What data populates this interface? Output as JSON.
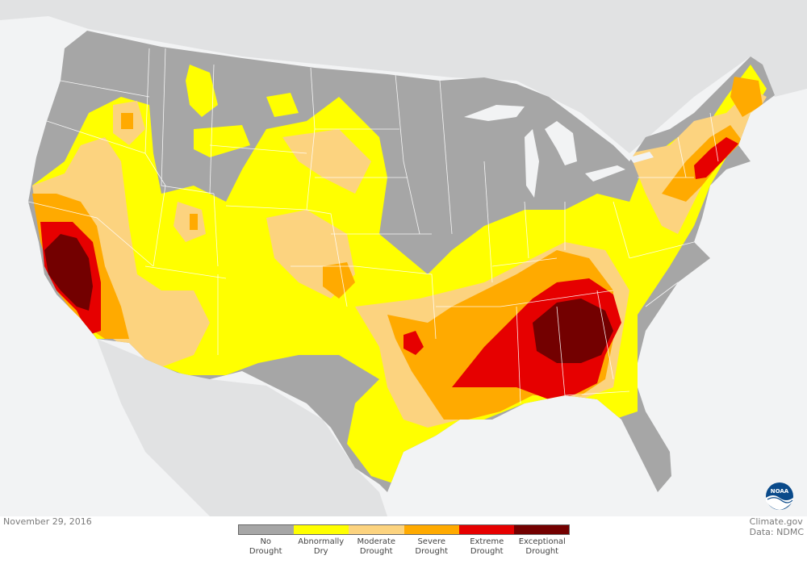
{
  "date": "November 29, 2016",
  "credit": {
    "site": "Climate.gov",
    "data_source": "Data: NDMC"
  },
  "logo": {
    "name": "noaa-logo",
    "text": "NOAA"
  },
  "legend": [
    {
      "label": "No\nDrought",
      "color": "#a6a6a6"
    },
    {
      "label": "Abnormally\nDry",
      "color": "#ffff00"
    },
    {
      "label": "Moderate\nDrought",
      "color": "#fcd37f"
    },
    {
      "label": "Severe\nDrought",
      "color": "#ffaa00"
    },
    {
      "label": "Extreme\nDrought",
      "color": "#e60000"
    },
    {
      "label": "Exceptional\nDrought",
      "color": "#730000"
    }
  ],
  "colors": {
    "background": "#f2f3f4",
    "land_outside": "#e1e2e3",
    "state_border": "#ffffff"
  }
}
